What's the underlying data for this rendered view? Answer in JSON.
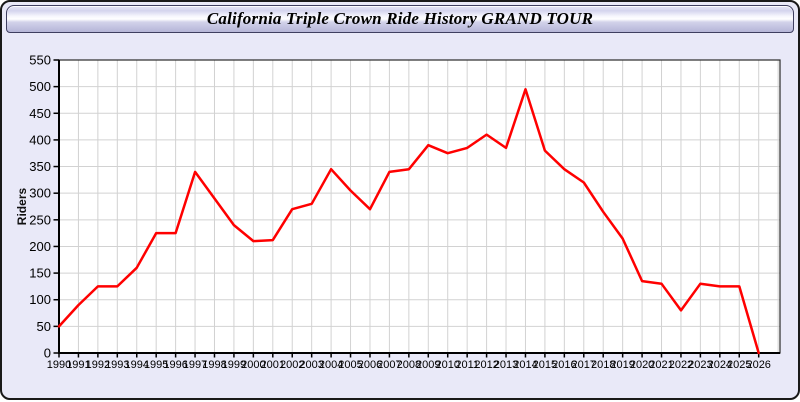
{
  "window": {
    "title": "California Triple Crown Ride History GRAND TOUR"
  },
  "chart_data": {
    "type": "line",
    "title": "California Triple Crown Ride History GRAND TOUR",
    "xlabel": "",
    "ylabel": "Riders",
    "ylim": [
      0,
      550
    ],
    "yticks": [
      0,
      50,
      100,
      150,
      200,
      250,
      300,
      350,
      400,
      450,
      500,
      550
    ],
    "grid": true,
    "legend": "none",
    "x": [
      1990,
      1991,
      1992,
      1993,
      1994,
      1995,
      1996,
      1997,
      1998,
      1999,
      2000,
      2001,
      2002,
      2003,
      2004,
      2005,
      2006,
      2007,
      2008,
      2009,
      2010,
      2011,
      2012,
      2013,
      2014,
      2015,
      2016,
      2017,
      2018,
      2019,
      2020,
      2021,
      2022,
      2023,
      2024,
      2025,
      2026
    ],
    "series": [
      {
        "name": "Riders",
        "color": "#ff0000",
        "values": [
          50,
          90,
          125,
          125,
          160,
          225,
          225,
          340,
          290,
          240,
          210,
          212,
          270,
          280,
          345,
          305,
          270,
          340,
          345,
          390,
          375,
          385,
          410,
          385,
          495,
          380,
          345,
          320,
          265,
          215,
          135,
          130,
          80,
          130,
          125,
          125,
          0
        ]
      }
    ]
  },
  "colors": {
    "window_background": "#e9e9f8",
    "titlebar_gradient_top": "#d9d9f0",
    "titlebar_gradient_highlight": "#ffffff",
    "titlebar_gradient_bottom": "#b5b5d7",
    "window_border": "#191919",
    "plot_background": "#ffffff",
    "gridline": "#d2d2d2",
    "axis": "#000000",
    "line": "#ff0000",
    "tick_label": "#000000"
  }
}
